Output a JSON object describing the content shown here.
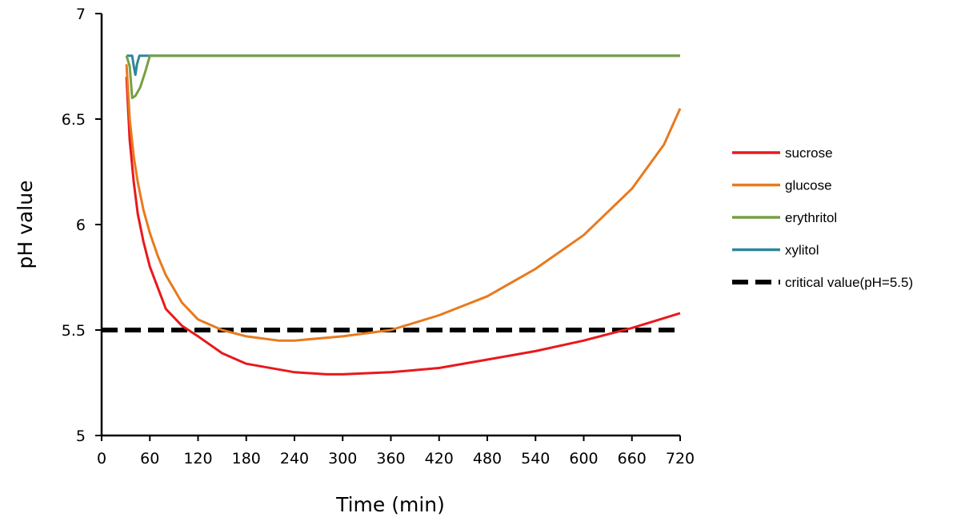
{
  "chart_data": {
    "type": "line",
    "title": "",
    "xlabel": "Time (min)",
    "ylabel": "pH value",
    "xlim": [
      0,
      720
    ],
    "ylim": [
      5,
      7
    ],
    "xticks": [
      0,
      60,
      120,
      180,
      240,
      300,
      360,
      420,
      480,
      540,
      600,
      660,
      720
    ],
    "yticks": [
      5,
      5.5,
      6,
      6.5,
      7
    ],
    "ytick_labels": [
      "5",
      "5.5",
      "6",
      "6.5",
      "7"
    ],
    "grid": false,
    "legend_position": "right",
    "series": [
      {
        "name": "sucrose",
        "color": "#e8191c",
        "dash": false,
        "x": [
          31,
          35,
          40,
          45,
          52,
          60,
          70,
          80,
          100,
          120,
          150,
          180,
          240,
          280,
          300,
          360,
          420,
          480,
          540,
          600,
          660,
          720
        ],
        "y": [
          6.7,
          6.4,
          6.2,
          6.05,
          5.92,
          5.8,
          5.7,
          5.6,
          5.52,
          5.47,
          5.39,
          5.34,
          5.3,
          5.29,
          5.29,
          5.3,
          5.32,
          5.36,
          5.4,
          5.45,
          5.51,
          5.58
        ]
      },
      {
        "name": "glucose",
        "color": "#e87a1e",
        "dash": false,
        "x": [
          31,
          35,
          40,
          45,
          52,
          60,
          70,
          80,
          100,
          120,
          150,
          180,
          220,
          240,
          300,
          360,
          420,
          480,
          540,
          600,
          660,
          700,
          720
        ],
        "y": [
          6.76,
          6.5,
          6.32,
          6.2,
          6.07,
          5.96,
          5.85,
          5.76,
          5.63,
          5.55,
          5.5,
          5.47,
          5.45,
          5.45,
          5.47,
          5.5,
          5.57,
          5.66,
          5.79,
          5.95,
          6.17,
          6.38,
          6.55
        ]
      },
      {
        "name": "erythritol",
        "color": "#77a043",
        "dash": false,
        "x": [
          31,
          35,
          38,
          42,
          48,
          54,
          60,
          720
        ],
        "y": [
          6.8,
          6.75,
          6.6,
          6.61,
          6.65,
          6.72,
          6.8,
          6.8
        ]
      },
      {
        "name": "xylitol",
        "color": "#31859c",
        "dash": false,
        "x": [
          31,
          38,
          40,
          42,
          44,
          47,
          720
        ],
        "y": [
          6.8,
          6.8,
          6.75,
          6.71,
          6.76,
          6.8,
          6.8
        ]
      },
      {
        "name": "critical value(pH=5.5)",
        "color": "#000000",
        "dash": true,
        "x": [
          0,
          720
        ],
        "y": [
          5.5,
          5.5
        ]
      }
    ]
  }
}
